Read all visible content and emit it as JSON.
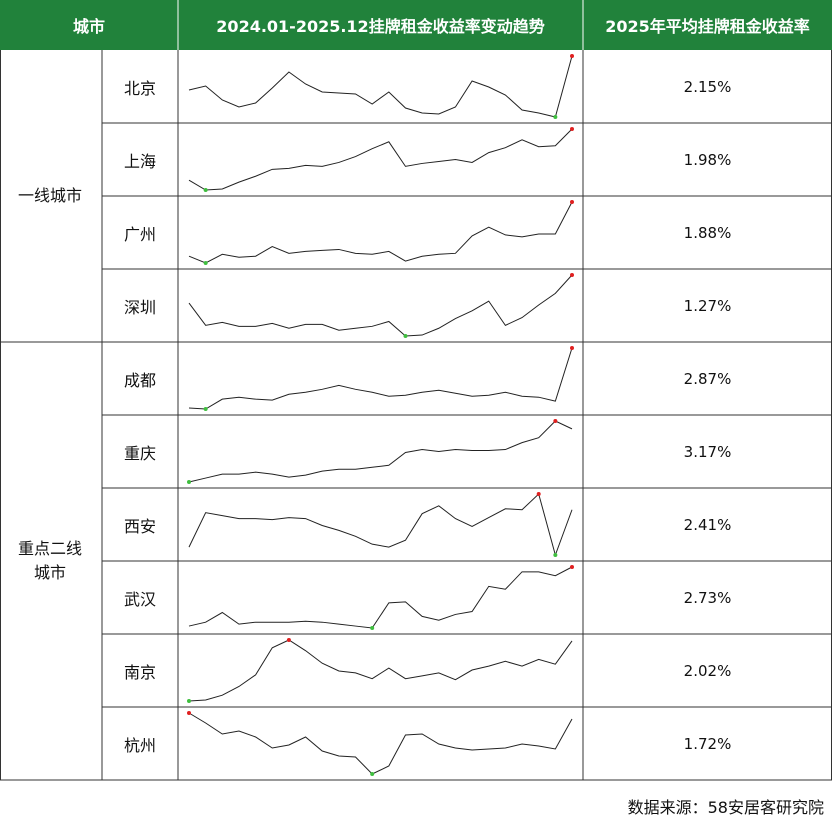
{
  "header": [
    "城市",
    "2024.01-2025.12挂牌租金收益率变动趋势",
    "2025年平均挂牌租金收益率"
  ],
  "groups": [
    {
      "label": "一线城市",
      "rows": [
        {
          "city": "北京",
          "trend": [
            33,
            37,
            23,
            16,
            20,
            35,
            51,
            39,
            31,
            30,
            29,
            19,
            31,
            15,
            10,
            9,
            16,
            42,
            36,
            28,
            13,
            10,
            6,
            67
          ],
          "value": "2.15%"
        },
        {
          "city": "上海",
          "trend": [
            16,
            6,
            7,
            14,
            20,
            27,
            28,
            31,
            30,
            34,
            40,
            48,
            55,
            30,
            33,
            35,
            37,
            34,
            44,
            49,
            57,
            50,
            51,
            68
          ],
          "value": "1.98%"
        },
        {
          "city": "广州",
          "trend": [
            12,
            5,
            14,
            11,
            12,
            22,
            15,
            17,
            18,
            19,
            15,
            14,
            17,
            7,
            12,
            14,
            15,
            33,
            42,
            34,
            32,
            35,
            35,
            68
          ],
          "value": "1.88%"
        },
        {
          "city": "深圳",
          "trend": [
            39,
            16,
            19,
            15,
            15,
            18,
            13,
            17,
            17,
            11,
            13,
            15,
            20,
            5,
            6,
            13,
            23,
            31,
            41,
            16,
            24,
            37,
            49,
            68
          ],
          "value": "1.27%"
        }
      ]
    },
    {
      "label": "重点二线城市",
      "rows": [
        {
          "city": "成都",
          "trend": [
            6,
            5,
            15,
            17,
            15,
            14,
            20,
            22,
            25,
            29,
            25,
            22,
            18,
            19,
            22,
            24,
            21,
            18,
            19,
            22,
            18,
            17,
            13,
            67
          ],
          "value": "2.87%"
        },
        {
          "city": "重庆",
          "trend": [
            4,
            8,
            12,
            12,
            14,
            12,
            9,
            11,
            15,
            17,
            17,
            19,
            21,
            34,
            37,
            35,
            37,
            36,
            36,
            37,
            44,
            49,
            66,
            58
          ],
          "value": "3.17%"
        },
        {
          "city": "西安",
          "trend": [
            13,
            48,
            45,
            42,
            42,
            41,
            43,
            42,
            35,
            30,
            24,
            16,
            13,
            20,
            47,
            55,
            42,
            34,
            43,
            52,
            51,
            67,
            5,
            51
          ],
          "value": "2.41%"
        },
        {
          "city": "武汉",
          "trend": [
            6,
            10,
            20,
            8,
            10,
            10,
            10,
            11,
            10,
            8,
            6,
            4,
            30,
            31,
            16,
            12,
            18,
            21,
            47,
            44,
            62,
            62,
            58,
            67
          ],
          "value": "2.73%"
        },
        {
          "city": "南京",
          "trend": [
            4,
            5,
            10,
            19,
            31,
            59,
            67,
            56,
            43,
            35,
            33,
            27,
            38,
            27,
            30,
            33,
            26,
            36,
            40,
            45,
            40,
            47,
            42,
            66
          ],
          "value": "2.02%"
        },
        {
          "city": "杭州",
          "trend": [
            66,
            56,
            45,
            48,
            42,
            31,
            34,
            42,
            28,
            23,
            22,
            5,
            13,
            44,
            45,
            35,
            31,
            29,
            30,
            31,
            35,
            33,
            30,
            60
          ],
          "value": "1.72%"
        }
      ]
    }
  ],
  "footer": "数据来源：58安居客研究院"
}
